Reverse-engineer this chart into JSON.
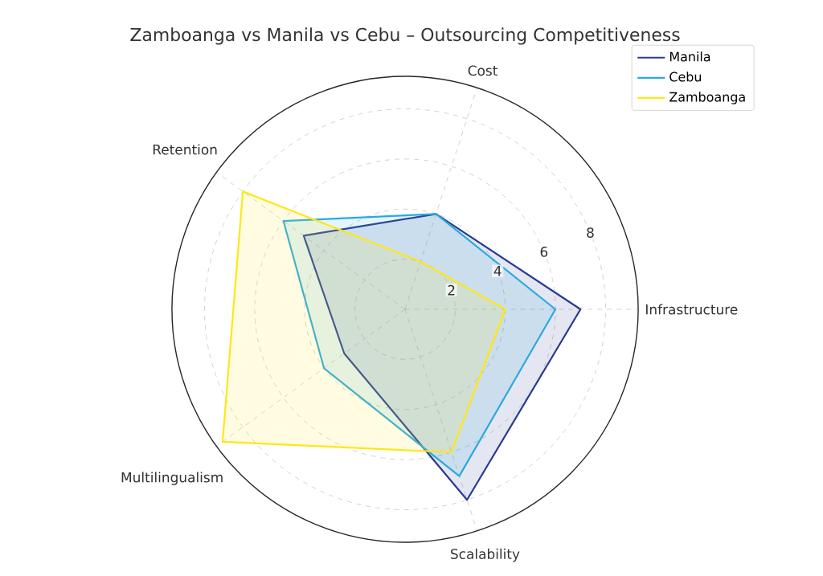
{
  "chart_data": {
    "type": "radar",
    "title": "Zamboanga vs Manila vs Cebu – Outsourcing Competitiveness",
    "categories": [
      "Cost",
      "Infrastructure",
      "Scalability",
      "Multilingualism",
      "Retention"
    ],
    "series": [
      {
        "name": "Manila",
        "color": "#2b3a8f",
        "values": [
          4,
          7,
          8,
          3,
          5
        ]
      },
      {
        "name": "Cebu",
        "color": "#2aa9e0",
        "values": [
          4,
          6,
          7,
          4,
          6
        ]
      },
      {
        "name": "Zamboanga",
        "color": "#ffe619",
        "values": [
          2,
          4,
          6,
          9,
          8
        ]
      }
    ],
    "ylim": [
      0,
      9.3
    ],
    "yticks": [
      2,
      4,
      6,
      8
    ],
    "grid": true,
    "legend": "top right"
  }
}
